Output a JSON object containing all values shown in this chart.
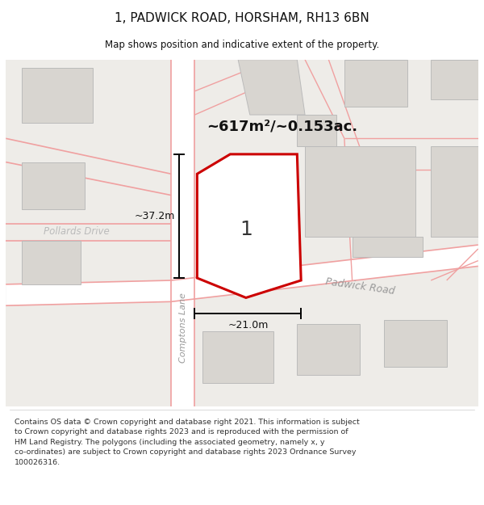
{
  "title": "1, PADWICK ROAD, HORSHAM, RH13 6BN",
  "subtitle": "Map shows position and indicative extent of the property.",
  "footer": "Contains OS data © Crown copyright and database right 2021. This information is subject\nto Crown copyright and database rights 2023 and is reproduced with the permission of\nHM Land Registry. The polygons (including the associated geometry, namely x, y\nco-ordinates) are subject to Crown copyright and database rights 2023 Ordnance Survey\n100026316.",
  "area_label": "~617m²/~0.153ac.",
  "height_label": "~37.2m",
  "width_label": "~21.0m",
  "number_label": "1",
  "road_label": "Padwick Road",
  "lane_label": "Comptons Lane",
  "pollards_label": "Pollards Drive",
  "map_bg": "#eeece8",
  "building_fill": "#d8d5d0",
  "building_edge": "#bbbbbb",
  "road_fill": "#ffffff",
  "poly_stroke": "#cc0000",
  "poly_fill": "#ffffff",
  "road_red": "#f0a0a0",
  "dim_color": "#111111",
  "text_color": "#111111",
  "road_text_color": "#999999"
}
